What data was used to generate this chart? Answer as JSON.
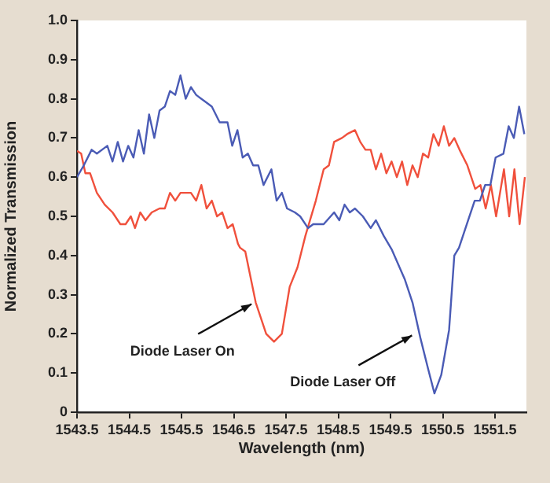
{
  "chart_data": {
    "type": "line",
    "xlabel": "Wavelength (nm)",
    "ylabel": "Normalized Transmission",
    "xlim": [
      1543.5,
      1552.1
    ],
    "xticks": [
      1543.5,
      1544.5,
      1545.5,
      1546.5,
      1547.5,
      1548.5,
      1549.5,
      1550.5,
      1551.5
    ],
    "ylim": [
      0,
      1
    ],
    "yticks": [
      0,
      0.1,
      0.2,
      0.3,
      0.4,
      0.5,
      0.6,
      0.7,
      0.8,
      0.9,
      {
        "value": 1,
        "label": "1.0"
      }
    ],
    "legend": false,
    "marker": "none",
    "line_style": "solid",
    "annotations": [
      {
        "text": "Diode Laser On",
        "x": 1546.9,
        "y": 0.28
      },
      {
        "text": "Diode Laser Off",
        "x": 1549.97,
        "y": 0.2
      }
    ],
    "series": [
      {
        "color": "#4a5bb5",
        "x": [
          1543.5,
          1543.63,
          1543.78,
          1543.88,
          1544.08,
          1544.18,
          1544.28,
          1544.38,
          1544.48,
          1544.58,
          1544.68,
          1544.78,
          1544.88,
          1544.98,
          1545.08,
          1545.18,
          1545.28,
          1545.38,
          1545.48,
          1545.58,
          1545.68,
          1545.78,
          1545.98,
          1546.08,
          1546.23,
          1546.38,
          1546.47,
          1546.57,
          1546.67,
          1546.77,
          1546.87,
          1546.97,
          1547.07,
          1547.22,
          1547.32,
          1547.42,
          1547.52,
          1547.67,
          1547.77,
          1547.92,
          1548.02,
          1548.22,
          1548.42,
          1548.52,
          1548.62,
          1548.72,
          1548.82,
          1548.97,
          1549.12,
          1549.22,
          1549.37,
          1549.52,
          1549.77,
          1549.92,
          1550.07,
          1550.22,
          1550.34,
          1550.47,
          1550.62,
          1550.72,
          1550.81,
          1550.96,
          1551.11,
          1551.21,
          1551.31,
          1551.41,
          1551.51,
          1551.66,
          1551.76,
          1551.86,
          1551.96,
          1552.06
        ],
        "values": [
          0.6,
          0.63,
          0.67,
          0.66,
          0.68,
          0.64,
          0.69,
          0.64,
          0.68,
          0.65,
          0.72,
          0.66,
          0.76,
          0.7,
          0.77,
          0.78,
          0.82,
          0.81,
          0.86,
          0.8,
          0.83,
          0.81,
          0.79,
          0.78,
          0.74,
          0.74,
          0.68,
          0.72,
          0.65,
          0.66,
          0.63,
          0.63,
          0.58,
          0.62,
          0.54,
          0.56,
          0.52,
          0.51,
          0.5,
          0.47,
          0.48,
          0.48,
          0.51,
          0.49,
          0.53,
          0.51,
          0.52,
          0.5,
          0.47,
          0.49,
          0.45,
          0.416,
          0.34,
          0.28,
          0.19,
          0.11,
          0.048,
          0.095,
          0.21,
          0.4,
          0.42,
          0.48,
          0.54,
          0.54,
          0.58,
          0.58,
          0.65,
          0.66,
          0.73,
          0.7,
          0.78,
          0.71
        ]
      },
      {
        "color": "#f0503c",
        "x": [
          1543.5,
          1543.58,
          1543.66,
          1543.75,
          1543.88,
          1544.03,
          1544.18,
          1544.33,
          1544.43,
          1544.53,
          1544.61,
          1544.71,
          1544.81,
          1544.93,
          1545.08,
          1545.18,
          1545.28,
          1545.38,
          1545.48,
          1545.58,
          1545.68,
          1545.78,
          1545.88,
          1545.98,
          1546.08,
          1546.18,
          1546.28,
          1546.38,
          1546.48,
          1546.58,
          1546.62,
          1546.72,
          1546.92,
          1547.12,
          1547.27,
          1547.42,
          1547.57,
          1547.72,
          1547.87,
          1548.07,
          1548.22,
          1548.32,
          1548.42,
          1548.57,
          1548.67,
          1548.82,
          1548.92,
          1549.02,
          1549.12,
          1549.22,
          1549.32,
          1549.42,
          1549.52,
          1549.62,
          1549.72,
          1549.82,
          1549.92,
          1550.02,
          1550.12,
          1550.22,
          1550.32,
          1550.42,
          1550.52,
          1550.62,
          1550.72,
          1550.82,
          1550.97,
          1551.12,
          1551.22,
          1551.32,
          1551.42,
          1551.52,
          1551.67,
          1551.77,
          1551.87,
          1551.97,
          1552.07
        ],
        "values": [
          0.667,
          0.66,
          0.61,
          0.61,
          0.56,
          0.53,
          0.51,
          0.48,
          0.48,
          0.5,
          0.47,
          0.51,
          0.49,
          0.51,
          0.52,
          0.52,
          0.56,
          0.54,
          0.56,
          0.56,
          0.56,
          0.54,
          0.58,
          0.52,
          0.54,
          0.5,
          0.51,
          0.47,
          0.48,
          0.43,
          0.42,
          0.41,
          0.28,
          0.2,
          0.18,
          0.2,
          0.32,
          0.37,
          0.45,
          0.54,
          0.62,
          0.63,
          0.69,
          0.7,
          0.71,
          0.72,
          0.69,
          0.67,
          0.67,
          0.62,
          0.66,
          0.61,
          0.64,
          0.6,
          0.64,
          0.58,
          0.63,
          0.6,
          0.66,
          0.65,
          0.71,
          0.68,
          0.73,
          0.68,
          0.7,
          0.67,
          0.63,
          0.57,
          0.58,
          0.52,
          0.58,
          0.5,
          0.62,
          0.5,
          0.62,
          0.48,
          0.6
        ]
      }
    ]
  }
}
